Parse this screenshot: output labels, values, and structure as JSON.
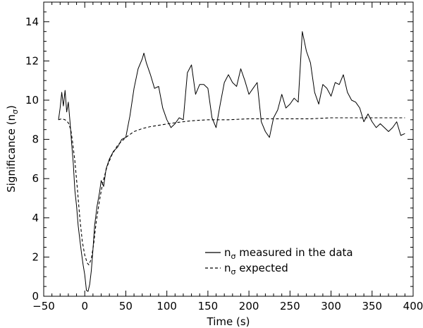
{
  "chart_data": {
    "type": "line",
    "title": "",
    "xlabel": "Time (s)",
    "ylabel_main": "Significance (n",
    "ylabel_sub": "σ",
    "ylabel_close": ")",
    "xlim": [
      -50,
      400
    ],
    "ylim": [
      0,
      15
    ],
    "xticks": [
      -50,
      0,
      50,
      100,
      150,
      200,
      250,
      300,
      350,
      400
    ],
    "xtick_labels": [
      "−50",
      "0",
      "50",
      "100",
      "150",
      "200",
      "250",
      "300",
      "350",
      "400"
    ],
    "yticks": [
      0,
      2,
      4,
      6,
      8,
      10,
      12,
      14
    ],
    "ytick_labels": [
      "0",
      "2",
      "4",
      "6",
      "8",
      "10",
      "12",
      "14"
    ],
    "grid": false,
    "legend_position": "lower-right",
    "series": [
      {
        "name_prefix": "n",
        "name_sub": "σ",
        "name_suffix": " measured in the data",
        "style": "solid",
        "x": [
          -32,
          -30,
          -28,
          -26,
          -24,
          -22,
          -20,
          -18,
          -16,
          -14,
          -12,
          -10,
          -8,
          -6,
          -4,
          -2,
          0,
          2,
          4,
          6,
          8,
          10,
          12,
          15,
          18,
          20,
          23,
          26,
          30,
          35,
          40,
          45,
          50,
          55,
          60,
          65,
          70,
          72,
          75,
          80,
          85,
          90,
          95,
          100,
          105,
          110,
          115,
          120,
          125,
          130,
          135,
          140,
          145,
          150,
          155,
          160,
          165,
          170,
          175,
          180,
          185,
          190,
          195,
          200,
          205,
          210,
          215,
          220,
          225,
          230,
          235,
          240,
          245,
          250,
          255,
          260,
          265,
          270,
          275,
          280,
          285,
          290,
          295,
          300,
          305,
          310,
          315,
          320,
          325,
          330,
          335,
          340,
          345,
          350,
          355,
          360,
          365,
          370,
          375,
          380,
          385,
          390
        ],
        "y": [
          9.0,
          9.6,
          10.4,
          9.7,
          10.5,
          9.4,
          9.9,
          8.9,
          7.8,
          6.8,
          5.4,
          4.6,
          3.6,
          2.9,
          2.2,
          1.6,
          1.1,
          0.3,
          0.25,
          0.6,
          1.3,
          2.4,
          3.6,
          4.6,
          5.3,
          5.9,
          5.6,
          6.5,
          7.0,
          7.4,
          7.6,
          8.0,
          8.1,
          9.2,
          10.6,
          11.6,
          12.1,
          12.4,
          11.9,
          11.3,
          10.6,
          10.7,
          9.6,
          9.0,
          8.6,
          8.8,
          9.1,
          9.0,
          11.4,
          11.8,
          10.3,
          10.8,
          10.8,
          10.6,
          9.1,
          8.6,
          9.8,
          10.9,
          11.3,
          10.9,
          10.7,
          11.6,
          11.0,
          10.3,
          10.6,
          10.9,
          8.9,
          8.4,
          8.1,
          9.1,
          9.5,
          10.3,
          9.6,
          9.8,
          10.1,
          9.9,
          13.5,
          12.5,
          11.9,
          10.4,
          9.8,
          10.8,
          10.6,
          10.2,
          10.9,
          10.8,
          11.3,
          10.4,
          10.0,
          9.9,
          9.6,
          8.9,
          9.3,
          8.9,
          8.6,
          8.8,
          8.6,
          8.4,
          8.6,
          8.9,
          8.2,
          8.3
        ]
      },
      {
        "name_prefix": "n",
        "name_sub": "σ",
        "name_suffix": " expected",
        "style": "dashed",
        "x": [
          -32,
          -28,
          -24,
          -20,
          -17,
          -15,
          -12,
          -9,
          -6,
          -3,
          0,
          3,
          5,
          8,
          11,
          14,
          18,
          22,
          27,
          33,
          40,
          50,
          60,
          70,
          80,
          95,
          110,
          130,
          150,
          175,
          200,
          225,
          250,
          275,
          300,
          325,
          350,
          375,
          390
        ],
        "y": [
          9.0,
          9.05,
          9.0,
          8.85,
          8.5,
          7.9,
          6.9,
          5.5,
          4.0,
          2.8,
          2.1,
          1.7,
          1.6,
          1.9,
          2.7,
          3.8,
          4.9,
          5.8,
          6.6,
          7.2,
          7.7,
          8.1,
          8.4,
          8.55,
          8.65,
          8.75,
          8.85,
          8.95,
          9.0,
          9.0,
          9.05,
          9.05,
          9.05,
          9.05,
          9.1,
          9.1,
          9.1,
          9.1,
          9.1
        ]
      }
    ]
  }
}
